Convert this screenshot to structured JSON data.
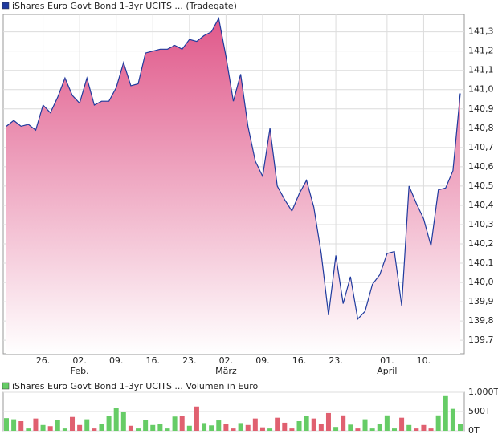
{
  "chart_data": [
    {
      "type": "area",
      "series": [
        {
          "name": "iShares Euro Govt Bond 1-3yr UCITS ... (Tradegate)",
          "color": "#1f3a9e",
          "values": [
            140.81,
            140.84,
            140.81,
            140.82,
            140.79,
            140.92,
            140.88,
            140.96,
            141.06,
            140.97,
            140.93,
            141.06,
            140.92,
            140.94,
            140.94,
            141.01,
            141.14,
            141.02,
            141.03,
            141.19,
            141.2,
            141.21,
            141.21,
            141.23,
            141.21,
            141.26,
            141.25,
            141.28,
            141.3,
            141.37,
            141.17,
            140.94,
            141.08,
            140.81,
            140.63,
            140.55,
            140.8,
            140.5,
            140.43,
            140.37,
            140.46,
            140.53,
            140.39,
            140.15,
            139.83,
            140.14,
            139.89,
            140.03,
            139.81,
            139.85,
            139.99,
            140.04,
            140.15,
            140.16,
            139.88,
            140.5,
            140.41,
            140.33,
            140.19,
            140.48,
            140.49,
            140.58,
            140.98
          ]
        }
      ],
      "fill_color": "#e0588a",
      "categories": [
        null,
        null,
        null,
        null,
        null,
        "26.",
        null,
        null,
        null,
        null,
        "02.",
        null,
        null,
        null,
        null,
        "09.",
        null,
        null,
        null,
        null,
        "16.",
        null,
        null,
        null,
        null,
        "23.",
        null,
        null,
        null,
        null,
        "02.",
        null,
        null,
        null,
        null,
        "09.",
        null,
        null,
        null,
        null,
        "16.",
        null,
        null,
        null,
        null,
        "23.",
        null,
        null,
        null,
        null,
        null,
        null,
        "01.",
        null,
        null,
        null,
        null,
        "10.",
        null,
        null,
        null,
        null,
        null
      ],
      "category_sublabels": [
        null,
        null,
        null,
        null,
        null,
        null,
        null,
        null,
        null,
        null,
        "Feb.",
        null,
        null,
        null,
        null,
        null,
        null,
        null,
        null,
        null,
        null,
        null,
        null,
        null,
        null,
        null,
        null,
        null,
        null,
        null,
        "März",
        null,
        null,
        null,
        null,
        null,
        null,
        null,
        null,
        null,
        null,
        null,
        null,
        null,
        null,
        null,
        null,
        null,
        null,
        null,
        null,
        null,
        "April",
        null,
        null,
        null,
        null,
        null,
        null,
        null,
        null,
        null,
        null
      ],
      "ylim": [
        139.63,
        141.39
      ],
      "yticks": [
        {
          "value": 139.7,
          "label": "139,7"
        },
        {
          "value": 139.8,
          "label": "139,8"
        },
        {
          "value": 139.9,
          "label": "139,9"
        },
        {
          "value": 140.0,
          "label": "140,0"
        },
        {
          "value": 140.1,
          "label": "140,1"
        },
        {
          "value": 140.2,
          "label": "140,2"
        },
        {
          "value": 140.3,
          "label": "140,3"
        },
        {
          "value": 140.4,
          "label": "140,4"
        },
        {
          "value": 140.5,
          "label": "140,5"
        },
        {
          "value": 140.6,
          "label": "140,6"
        },
        {
          "value": 140.7,
          "label": "140,7"
        },
        {
          "value": 140.8,
          "label": "140,8"
        },
        {
          "value": 140.9,
          "label": "140,9"
        },
        {
          "value": 141.0,
          "label": "141,0"
        },
        {
          "value": 141.1,
          "label": "141,1"
        },
        {
          "value": 141.2,
          "label": "141,2"
        },
        {
          "value": 141.3,
          "label": "141,3"
        }
      ],
      "grid": true
    },
    {
      "type": "bar",
      "series": [
        {
          "name": "iShares Euro Govt Bond 1-3yr UCITS ... Volumen in Euro",
          "color": "#66cc66",
          "values": [
            330,
            300,
            250,
            60,
            320,
            150,
            120,
            280,
            60,
            360,
            150,
            300,
            60,
            180,
            380,
            590,
            480,
            130,
            60,
            280,
            150,
            180,
            60,
            370,
            390,
            130,
            630,
            200,
            140,
            270,
            180,
            60,
            200,
            150,
            320,
            90,
            60,
            340,
            210,
            60,
            250,
            380,
            320,
            180,
            460,
            100,
            400,
            160,
            60,
            300,
            60,
            180,
            400,
            60,
            340,
            150,
            60,
            150,
            60,
            400,
            900,
            570,
            180
          ]
        }
      ],
      "down_color": "#e06070",
      "ylim": [
        0,
        1000
      ],
      "yticks": [
        {
          "value": 0,
          "label": "0T"
        },
        {
          "value": 500,
          "label": "500T"
        },
        {
          "value": 1000,
          "label": "1.000T"
        }
      ],
      "grid": true
    }
  ]
}
